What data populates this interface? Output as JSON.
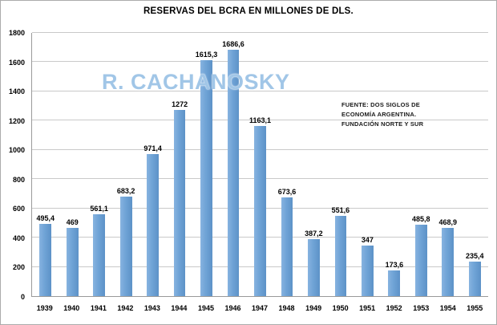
{
  "chart_data": {
    "type": "bar",
    "title": "RESERVAS DEL BCRA EN MILLONES DE DLS.",
    "categories": [
      "1939",
      "1940",
      "1941",
      "1942",
      "1943",
      "1944",
      "1945",
      "1946",
      "1947",
      "1948",
      "1949",
      "1950",
      "1951",
      "1952",
      "1953",
      "1954",
      "1955"
    ],
    "values": [
      495.4,
      469,
      561.1,
      683.2,
      971.4,
      1272,
      1615.3,
      1686.6,
      1163.1,
      673.6,
      387.2,
      551.6,
      347,
      173.6,
      485.8,
      468.9,
      235.4
    ],
    "value_labels": [
      "495,4",
      "469",
      "561,1",
      "683,2",
      "971,4",
      "1272",
      "1615,3",
      "1686,6",
      "1163,1",
      "673,6",
      "387,2",
      "551,6",
      "347",
      "173,6",
      "485,8",
      "468,9",
      "235,4"
    ],
    "xlabel": "",
    "ylabel": "",
    "ylim": [
      0,
      1800
    ],
    "ytick_step": 200,
    "grid": true,
    "legend": "none",
    "bar_color": "#6FA3D6",
    "gridline_color": "#C9C9C9",
    "watermark": "R. CACHANOSKY",
    "source_note": {
      "line1": "FUENTE: DOS SIGLOS DE",
      "line2": "ECONOMÍA ARGENTINA.",
      "line3": "FUNDACIÓN NORTE Y SUR"
    }
  }
}
